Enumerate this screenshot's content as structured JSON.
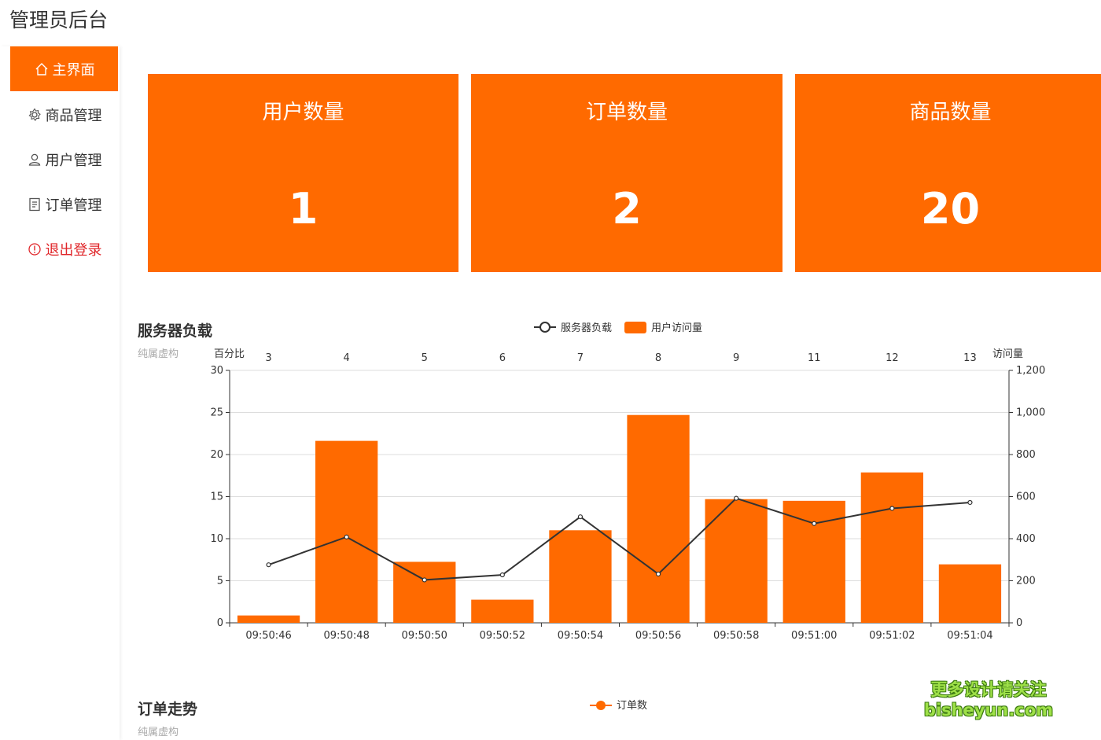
{
  "app_title": "管理员后台",
  "sidebar": {
    "items": [
      {
        "label": "主界面",
        "icon": "home-icon"
      },
      {
        "label": "商品管理",
        "icon": "gear-icon"
      },
      {
        "label": "用户管理",
        "icon": "user-icon"
      },
      {
        "label": "订单管理",
        "icon": "document-icon"
      },
      {
        "label": "退出登录",
        "icon": "info-icon"
      }
    ],
    "active_color": "#ff6a00",
    "logout_color": "#e0262a"
  },
  "stats": [
    {
      "label": "用户数量",
      "value": "1"
    },
    {
      "label": "订单数量",
      "value": "2"
    },
    {
      "label": "商品数量",
      "value": "20"
    }
  ],
  "server_section": {
    "title": "服务器负载",
    "subtitle": "纯属虚构",
    "legend": {
      "line": "服务器负载",
      "bar": "用户访问量"
    }
  },
  "order_section": {
    "title": "订单走势",
    "subtitle": "纯属虚构",
    "legend": {
      "line": "订单数"
    }
  },
  "watermark": {
    "line1": "更多设计请关注",
    "line2": "bisheyun.com"
  },
  "chart_data": {
    "type": "bar",
    "title": "服务器负载",
    "subtitle": "纯属虚构",
    "categories": [
      "09:50:46",
      "09:50:48",
      "09:50:50",
      "09:50:52",
      "09:50:54",
      "09:50:56",
      "09:50:58",
      "09:51:00",
      "09:51:02",
      "09:51:04"
    ],
    "top_categories": [
      "3",
      "4",
      "5",
      "6",
      "7",
      "8",
      "9",
      "11",
      "12",
      "13"
    ],
    "y_left": {
      "name": "百分比",
      "ylim": [
        0,
        30
      ],
      "ticks": [
        "0",
        "5",
        "10",
        "15",
        "20",
        "25",
        "30"
      ]
    },
    "y_right": {
      "name": "访问量",
      "ylim": [
        0,
        1200
      ],
      "ticks": [
        "0",
        "200",
        "400",
        "600",
        "800",
        "1,000",
        "1,200"
      ]
    },
    "series": [
      {
        "name": "用户访问量",
        "type": "bar",
        "axis": "right",
        "color": "#ff6a00",
        "values": [
          35,
          865,
          290,
          110,
          440,
          988,
          588,
          580,
          715,
          278
        ]
      },
      {
        "name": "服务器负载",
        "type": "line",
        "axis": "left",
        "color": "#333333",
        "values": [
          6.9,
          10.2,
          5.1,
          5.7,
          12.6,
          5.8,
          14.8,
          11.8,
          13.6,
          14.3
        ]
      }
    ],
    "grid": true,
    "legend_position": "top-center"
  }
}
